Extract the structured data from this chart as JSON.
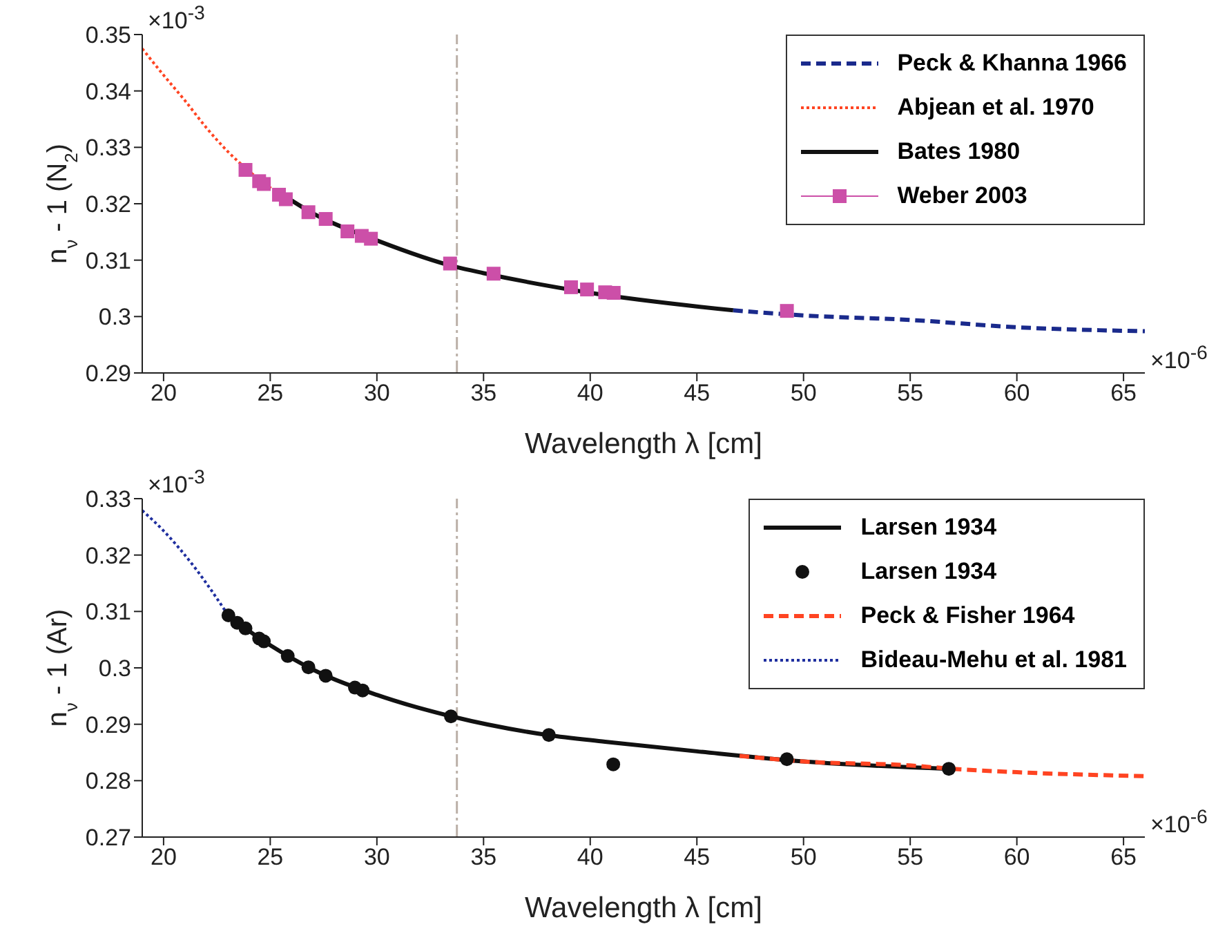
{
  "chart_data": [
    {
      "type": "line",
      "xlabel": "Wavelength λ [cm]",
      "ylabel": "n$_{ν}$ - 1 (N$_{2}$)",
      "annotations": [
        "×10$^{-3}$",
        "×10$^{-6}$"
      ],
      "xlim": [
        19,
        66
      ],
      "xticks": [
        20,
        25,
        30,
        35,
        40,
        45,
        50,
        55,
        60,
        65
      ],
      "ylim": [
        0.29,
        0.35
      ],
      "yticks": [
        0.29,
        0.3,
        0.31,
        0.32,
        0.33,
        0.34,
        0.35
      ],
      "legend": "top right",
      "ref_lines": [
        {
          "axis": "x",
          "value": 33.75,
          "color": "#bbb0a8",
          "line_style": "dashdot"
        }
      ],
      "series": [
        {
          "name": "Peck & Khanna 1966",
          "color": "#1a2a8c",
          "line_style": "dashed",
          "marker": "none",
          "x": [
            46.7,
            50,
            55,
            60,
            66
          ],
          "values": [
            0.3011,
            0.3002,
            0.2994,
            0.2981,
            0.2974
          ]
        },
        {
          "name": "Abjean et al. 1970",
          "color": "#ff4422",
          "line_style": "dotted",
          "marker": "none",
          "x": [
            19,
            20,
            21,
            22,
            23,
            24,
            25.5
          ],
          "values": [
            0.3475,
            0.3428,
            0.3383,
            0.3335,
            0.3293,
            0.3258,
            0.3215
          ]
        },
        {
          "name": "Bates 1980",
          "color": "#111111",
          "line_style": "solid",
          "marker": "none",
          "x": [
            25.7,
            27,
            30,
            33.7,
            35,
            40,
            46.7
          ],
          "values": [
            0.3213,
            0.3183,
            0.3135,
            0.3088,
            0.3077,
            0.3042,
            0.3011
          ]
        },
        {
          "name": "Weber 2003",
          "color": "#cc4fa8",
          "type": "scatter",
          "marker": "square",
          "x": [
            23.84,
            24.48,
            24.7,
            25.41,
            25.73,
            26.79,
            27.6,
            28.62,
            29.29,
            29.72,
            33.43,
            35.47,
            39.1,
            39.85,
            40.7,
            41.1,
            49.22
          ],
          "values": [
            0.326,
            0.324,
            0.3235,
            0.3216,
            0.3208,
            0.3185,
            0.3173,
            0.3151,
            0.3143,
            0.3138,
            0.3094,
            0.3076,
            0.3052,
            0.3048,
            0.3043,
            0.3042,
            0.301
          ]
        }
      ]
    },
    {
      "type": "line",
      "xlabel": "Wavelength λ [cm]",
      "ylabel": "n$_{ν}$ - 1 (Ar)",
      "annotations": [
        "×10$^{-3}$",
        "×10$^{-6}$"
      ],
      "xlim": [
        19,
        66
      ],
      "xticks": [
        20,
        25,
        30,
        35,
        40,
        45,
        50,
        55,
        60,
        65
      ],
      "ylim": [
        0.27,
        0.33
      ],
      "yticks": [
        0.27,
        0.28,
        0.29,
        0.3,
        0.31,
        0.32,
        0.33
      ],
      "legend": "top right",
      "ref_lines": [
        {
          "axis": "x",
          "value": 33.75,
          "color": "#bbb0a8",
          "line_style": "dashdot"
        }
      ],
      "series": [
        {
          "name": "Larsen 1934",
          "color": "#111111",
          "line_style": "solid",
          "marker": "none",
          "x": [
            23,
            25,
            27,
            30,
            33.5,
            38,
            40.7,
            45,
            50,
            56.8
          ],
          "values": [
            0.3093,
            0.304,
            0.2997,
            0.2952,
            0.2914,
            0.2881,
            0.2869,
            0.2852,
            0.2834,
            0.2821
          ]
        },
        {
          "name": "Larsen 1934",
          "color": "#111111",
          "type": "scatter",
          "marker": "circle",
          "x": [
            23.04,
            23.45,
            23.84,
            24.48,
            24.7,
            25.82,
            26.79,
            27.6,
            28.97,
            29.33,
            33.47,
            38.06,
            41.08,
            49.22,
            56.81
          ],
          "values": [
            0.3093,
            0.308,
            0.307,
            0.3052,
            0.3047,
            0.3021,
            0.3001,
            0.2986,
            0.2965,
            0.296,
            0.2914,
            0.2881,
            0.2829,
            0.2838,
            0.2821
          ]
        },
        {
          "name": "Peck & Fisher 1964",
          "color": "#ff4422",
          "line_style": "dashed",
          "marker": "none",
          "x": [
            47,
            50,
            55,
            57,
            60,
            66
          ],
          "values": [
            0.2844,
            0.2834,
            0.2827,
            0.2821,
            0.2815,
            0.2808
          ]
        },
        {
          "name": "Bideau-Mehu et al. 1981",
          "color": "#1f2f9f",
          "line_style": "dotted",
          "marker": "none",
          "x": [
            19,
            20,
            21.5,
            23
          ],
          "values": [
            0.3279,
            0.3243,
            0.3176,
            0.3095
          ]
        }
      ]
    }
  ]
}
